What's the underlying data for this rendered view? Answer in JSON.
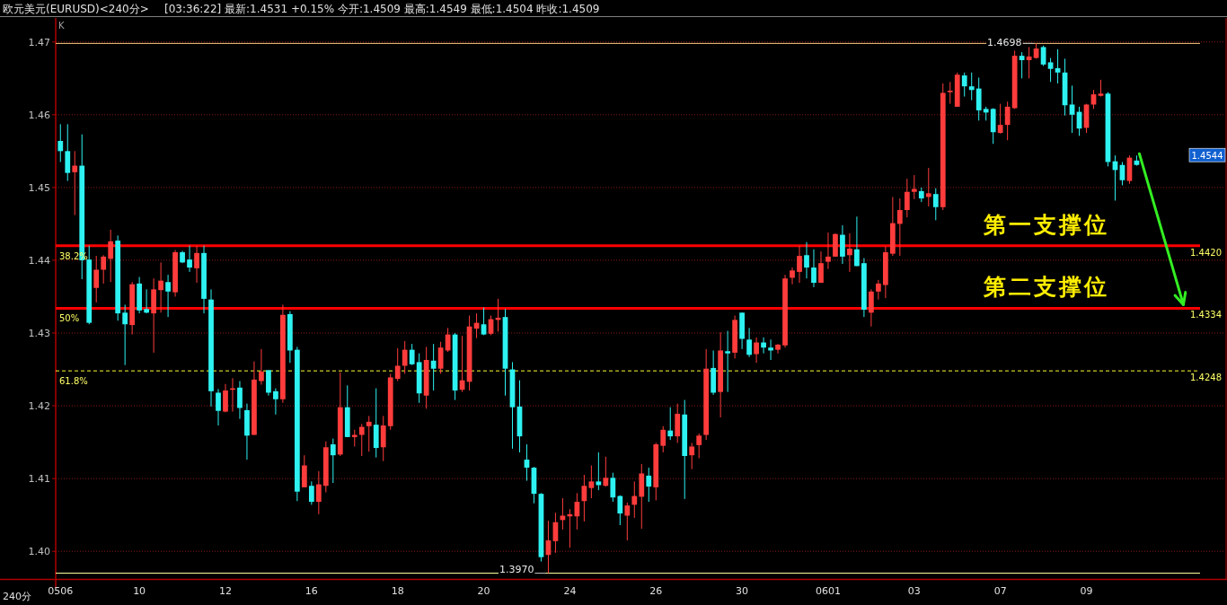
{
  "chart_data": {
    "type": "candlestick",
    "title": "欧元美元(EURUSD)<240分>",
    "subtitle": "[03:36:22] 最新:1.4531 +0.15% 今开:1.4509 最高:1.4549 最低:1.4504 昨收:1.4509",
    "categories": [
      "0506",
      null,
      null,
      null,
      null,
      null,
      null,
      null,
      null,
      null,
      null,
      "10",
      null,
      null,
      null,
      null,
      null,
      null,
      null,
      null,
      null,
      null,
      null,
      "12",
      null,
      null,
      null,
      null,
      null,
      null,
      null,
      null,
      null,
      null,
      null,
      "16",
      null,
      null,
      null,
      null,
      null,
      null,
      null,
      null,
      null,
      null,
      null,
      "18",
      null,
      null,
      null,
      null,
      null,
      null,
      null,
      null,
      null,
      null,
      null,
      "20",
      null,
      null,
      null,
      null,
      null,
      null,
      null,
      null,
      null,
      null,
      null,
      "24",
      null,
      null,
      null,
      null,
      null,
      null,
      null,
      null,
      null,
      null,
      null,
      "26",
      null,
      null,
      null,
      null,
      null,
      null,
      null,
      null,
      null,
      null,
      null,
      "30",
      null,
      null,
      null,
      null,
      null,
      null,
      null,
      null,
      null,
      null,
      null,
      "0601",
      null,
      null,
      null,
      null,
      null,
      null,
      null,
      null,
      null,
      null,
      null,
      "03",
      null,
      null,
      null,
      null,
      null,
      null,
      null,
      null,
      null,
      null,
      null,
      "07",
      null,
      null,
      null,
      null,
      null,
      null,
      null,
      null,
      null,
      null,
      null,
      "09",
      null,
      null,
      null,
      null,
      null,
      null,
      null
    ],
    "ohlc": [
      [
        1.4564,
        1.4587,
        1.4535,
        1.455
      ],
      [
        1.455,
        1.4587,
        1.4509,
        1.452
      ],
      [
        1.4521,
        1.455,
        1.4462,
        1.453
      ],
      [
        1.453,
        1.4573,
        1.4374,
        1.44
      ],
      [
        1.4401,
        1.442,
        1.4312,
        1.4314
      ],
      [
        1.4362,
        1.4406,
        1.4342,
        1.4387
      ],
      [
        1.4387,
        1.4407,
        1.4368,
        1.4405
      ],
      [
        1.4402,
        1.4442,
        1.437,
        1.4426
      ],
      [
        1.4427,
        1.4434,
        1.4317,
        1.4327
      ],
      [
        1.4328,
        1.4339,
        1.4256,
        1.4312
      ],
      [
        1.4311,
        1.437,
        1.4298,
        1.4367
      ],
      [
        1.4368,
        1.4377,
        1.4327,
        1.4331
      ],
      [
        1.4333,
        1.436,
        1.4327,
        1.4328
      ],
      [
        1.4327,
        1.4375,
        1.4273,
        1.436
      ],
      [
        1.4359,
        1.4397,
        1.4328,
        1.4372
      ],
      [
        1.437,
        1.438,
        1.4322,
        1.4357
      ],
      [
        1.4356,
        1.4414,
        1.435,
        1.4411
      ],
      [
        1.4411,
        1.4413,
        1.4396,
        1.4397
      ],
      [
        1.4401,
        1.442,
        1.4384,
        1.439
      ],
      [
        1.4389,
        1.442,
        1.4369,
        1.441
      ],
      [
        1.441,
        1.442,
        1.4327,
        1.4347
      ],
      [
        1.4346,
        1.436,
        1.4199,
        1.422
      ],
      [
        1.4218,
        1.4223,
        1.4173,
        1.4193
      ],
      [
        1.4192,
        1.423,
        1.4191,
        1.4221
      ],
      [
        1.4222,
        1.4238,
        1.4192,
        1.4224
      ],
      [
        1.4225,
        1.4234,
        1.4182,
        1.4197
      ],
      [
        1.4194,
        1.4203,
        1.4126,
        1.4159
      ],
      [
        1.416,
        1.4261,
        1.416,
        1.4236
      ],
      [
        1.4234,
        1.4278,
        1.4229,
        1.4247
      ],
      [
        1.4249,
        1.4249,
        1.4214,
        1.4218
      ],
      [
        1.422,
        1.4224,
        1.4188,
        1.4209
      ],
      [
        1.4209,
        1.4339,
        1.4204,
        1.4325
      ],
      [
        1.4326,
        1.433,
        1.4259,
        1.4276
      ],
      [
        1.4277,
        1.4281,
        1.4069,
        1.4082
      ],
      [
        1.4088,
        1.4132,
        1.4088,
        1.4118
      ],
      [
        1.409,
        1.4096,
        1.4064,
        1.4068
      ],
      [
        1.4068,
        1.411,
        1.4051,
        1.4092
      ],
      [
        1.409,
        1.4151,
        1.4081,
        1.4143
      ],
      [
        1.4147,
        1.4155,
        1.4094,
        1.4132
      ],
      [
        1.4133,
        1.4246,
        1.4131,
        1.4198
      ],
      [
        1.4198,
        1.4228,
        1.4157,
        1.4157
      ],
      [
        1.4157,
        1.4167,
        1.4144,
        1.416
      ],
      [
        1.416,
        1.4175,
        1.4131,
        1.4171
      ],
      [
        1.4172,
        1.4186,
        1.4137,
        1.4178
      ],
      [
        1.4174,
        1.4224,
        1.4129,
        1.4142
      ],
      [
        1.4143,
        1.4186,
        1.4124,
        1.4173
      ],
      [
        1.4172,
        1.4244,
        1.4167,
        1.4239
      ],
      [
        1.4237,
        1.4279,
        1.4234,
        1.4255
      ],
      [
        1.4255,
        1.4289,
        1.4244,
        1.4277
      ],
      [
        1.4277,
        1.4285,
        1.4256,
        1.4257
      ],
      [
        1.426,
        1.4272,
        1.4204,
        1.4217
      ],
      [
        1.4214,
        1.4281,
        1.4196,
        1.4263
      ],
      [
        1.4262,
        1.4285,
        1.4221,
        1.4251
      ],
      [
        1.4251,
        1.4288,
        1.4244,
        1.428
      ],
      [
        1.4276,
        1.4307,
        1.4274,
        1.4298
      ],
      [
        1.4298,
        1.43,
        1.4208,
        1.4221
      ],
      [
        1.4222,
        1.4296,
        1.4219,
        1.4235
      ],
      [
        1.4233,
        1.4324,
        1.4221,
        1.4309
      ],
      [
        1.4306,
        1.4327,
        1.4293,
        1.4314
      ],
      [
        1.4312,
        1.4335,
        1.4297,
        1.4298
      ],
      [
        1.4299,
        1.4324,
        1.4297,
        1.4319
      ],
      [
        1.4318,
        1.4347,
        1.4302,
        1.4321
      ],
      [
        1.4322,
        1.4333,
        1.4214,
        1.4251
      ],
      [
        1.425,
        1.426,
        1.4141,
        1.4198
      ],
      [
        1.4199,
        1.4235,
        1.4136,
        1.4158
      ],
      [
        1.4126,
        1.4147,
        1.4097,
        1.4115
      ],
      [
        1.4115,
        1.4116,
        1.4066,
        1.4079
      ],
      [
        1.4079,
        1.408,
        1.3986,
        1.3992
      ],
      [
        1.3995,
        1.4042,
        1.397,
        1.4015
      ],
      [
        1.4014,
        1.4053,
        1.3998,
        1.404
      ],
      [
        1.4043,
        1.4073,
        1.403,
        1.4049
      ],
      [
        1.4048,
        1.4058,
        1.4005,
        1.4051
      ],
      [
        1.4048,
        1.408,
        1.403,
        1.4068
      ],
      [
        1.4069,
        1.4105,
        1.4041,
        1.409
      ],
      [
        1.4087,
        1.4118,
        1.4073,
        1.4096
      ],
      [
        1.4096,
        1.4136,
        1.4084,
        1.4091
      ],
      [
        1.409,
        1.413,
        1.4089,
        1.4101
      ],
      [
        1.4101,
        1.4108,
        1.4068,
        1.4074
      ],
      [
        1.4076,
        1.4077,
        1.4036,
        1.4052
      ],
      [
        1.4049,
        1.4067,
        1.4015,
        1.4063
      ],
      [
        1.4064,
        1.4096,
        1.4046,
        1.4076
      ],
      [
        1.4075,
        1.412,
        1.4031,
        1.4107
      ],
      [
        1.4104,
        1.4115,
        1.4068,
        1.4089
      ],
      [
        1.4088,
        1.4149,
        1.407,
        1.4147
      ],
      [
        1.4145,
        1.4172,
        1.4136,
        1.4167
      ],
      [
        1.4166,
        1.4198,
        1.4153,
        1.4158
      ],
      [
        1.4158,
        1.4203,
        1.4149,
        1.4189
      ],
      [
        1.4188,
        1.4208,
        1.4072,
        1.4131
      ],
      [
        1.4132,
        1.4149,
        1.4113,
        1.4144
      ],
      [
        1.4146,
        1.4162,
        1.4128,
        1.4159
      ],
      [
        1.416,
        1.4278,
        1.4153,
        1.4251
      ],
      [
        1.4252,
        1.4276,
        1.4215,
        1.4218
      ],
      [
        1.4219,
        1.4301,
        1.4184,
        1.4276
      ],
      [
        1.4275,
        1.4303,
        1.4219,
        1.4272
      ],
      [
        1.4273,
        1.4324,
        1.4265,
        1.4318
      ],
      [
        1.4328,
        1.4328,
        1.4278,
        1.4292
      ],
      [
        1.4291,
        1.4307,
        1.4267,
        1.427
      ],
      [
        1.4271,
        1.4294,
        1.4259,
        1.4287
      ],
      [
        1.4287,
        1.4294,
        1.4272,
        1.428
      ],
      [
        1.428,
        1.4291,
        1.4263,
        1.4276
      ],
      [
        1.4277,
        1.4285,
        1.4272,
        1.4284
      ],
      [
        1.4283,
        1.438,
        1.428,
        1.4375
      ],
      [
        1.4376,
        1.439,
        1.4367,
        1.4386
      ],
      [
        1.4384,
        1.442,
        1.4369,
        1.4406
      ],
      [
        1.4407,
        1.4425,
        1.4375,
        1.439
      ],
      [
        1.439,
        1.4415,
        1.4363,
        1.4369
      ],
      [
        1.4369,
        1.4412,
        1.4369,
        1.4396
      ],
      [
        1.4398,
        1.4438,
        1.4388,
        1.4405
      ],
      [
        1.4405,
        1.4437,
        1.4405,
        1.4436
      ],
      [
        1.4435,
        1.4448,
        1.4395,
        1.4405
      ],
      [
        1.4407,
        1.4437,
        1.4384,
        1.4416
      ],
      [
        1.4415,
        1.446,
        1.4392,
        1.4392
      ],
      [
        1.4396,
        1.4403,
        1.4322,
        1.4332
      ],
      [
        1.4328,
        1.436,
        1.4309,
        1.4357
      ],
      [
        1.4357,
        1.4373,
        1.4346,
        1.4368
      ],
      [
        1.4366,
        1.4419,
        1.4348,
        1.4411
      ],
      [
        1.4409,
        1.4487,
        1.4406,
        1.4451
      ],
      [
        1.445,
        1.4485,
        1.4406,
        1.4469
      ],
      [
        1.4469,
        1.4512,
        1.4459,
        1.4494
      ],
      [
        1.4494,
        1.4517,
        1.4484,
        1.4498
      ],
      [
        1.4495,
        1.45,
        1.448,
        1.4485
      ],
      [
        1.4487,
        1.4527,
        1.4474,
        1.4492
      ],
      [
        1.4491,
        1.4499,
        1.4455,
        1.4473
      ],
      [
        1.4473,
        1.4643,
        1.4469,
        1.463
      ],
      [
        1.4631,
        1.4645,
        1.4615,
        1.4633
      ],
      [
        1.4611,
        1.4658,
        1.4611,
        1.4655
      ],
      [
        1.4654,
        1.4658,
        1.4625,
        1.4639
      ],
      [
        1.4639,
        1.4658,
        1.462,
        1.4634
      ],
      [
        1.4636,
        1.4651,
        1.4592,
        1.4606
      ],
      [
        1.4608,
        1.4611,
        1.4592,
        1.4603
      ],
      [
        1.4608,
        1.4609,
        1.456,
        1.4576
      ],
      [
        1.4575,
        1.4615,
        1.4574,
        1.4586
      ],
      [
        1.4586,
        1.4618,
        1.4565,
        1.4611
      ],
      [
        1.4609,
        1.4688,
        1.4608,
        1.4681
      ],
      [
        1.4681,
        1.4686,
        1.465,
        1.4675
      ],
      [
        1.4675,
        1.4693,
        1.465,
        1.468
      ],
      [
        1.4678,
        1.4698,
        1.4677,
        1.4691
      ],
      [
        1.4693,
        1.4695,
        1.4667,
        1.4669
      ],
      [
        1.4672,
        1.4678,
        1.4645,
        1.4663
      ],
      [
        1.4664,
        1.469,
        1.4643,
        1.4658
      ],
      [
        1.4658,
        1.4677,
        1.4599,
        1.4613
      ],
      [
        1.4614,
        1.464,
        1.4575,
        1.46
      ],
      [
        1.4604,
        1.4611,
        1.4571,
        1.4581
      ],
      [
        1.4582,
        1.4615,
        1.4575,
        1.4614
      ],
      [
        1.4614,
        1.4634,
        1.4608,
        1.4628
      ],
      [
        1.4626,
        1.4648,
        1.4625,
        1.4629
      ],
      [
        1.4629,
        1.4631,
        1.4529,
        1.4535
      ],
      [
        1.4536,
        1.4544,
        1.4482,
        1.4524
      ],
      [
        1.4531,
        1.4535,
        1.4503,
        1.451
      ],
      [
        1.4509,
        1.4544,
        1.4505,
        1.4541
      ],
      [
        1.4537,
        1.4544,
        1.453,
        1.4531
      ]
    ],
    "ylim": [
      1.3962,
      1.4733
    ],
    "yticks": [
      {
        "value": 1.4,
        "label": "1.40"
      },
      {
        "value": 1.41,
        "label": "1.41"
      },
      {
        "value": 1.42,
        "label": "1.42"
      },
      {
        "value": 1.43,
        "label": "1.43"
      },
      {
        "value": 1.44,
        "label": "1.44"
      },
      {
        "value": 1.45,
        "label": "1.45"
      },
      {
        "value": 1.46,
        "label": "1.46"
      },
      {
        "value": 1.47,
        "label": "1.47"
      }
    ],
    "grid": "y",
    "ref_lines": [
      {
        "axis": "y",
        "value": 1.4698,
        "color": "#ffcc80"
      },
      {
        "axis": "y",
        "value": 1.397,
        "color": "#ffffa0"
      },
      {
        "axis": "y",
        "value": 1.442,
        "label": "1.4420",
        "color": "#ff0000"
      },
      {
        "axis": "y",
        "value": 1.4334,
        "label": "1.4334",
        "color": "#ff0000"
      },
      {
        "axis": "y",
        "value": 1.4248,
        "label": "1.4248",
        "color": "#ffff33",
        "line_style": "dashed"
      }
    ],
    "annotations": [
      "K",
      "240分",
      {
        "text": "1.4698",
        "y": 1.4698
      },
      {
        "text": "1.3970",
        "y": 1.397
      },
      "1.4544",
      "38.2%",
      "50%",
      "61.8%",
      {
        "text": "第一支撑位",
        "y": 1.442
      },
      {
        "text": "第二支撑位",
        "y": 1.4334
      }
    ]
  }
}
